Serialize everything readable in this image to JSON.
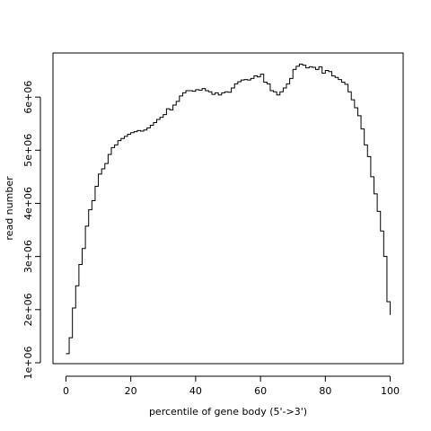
{
  "chart_data": {
    "type": "line",
    "drawstyle": "steps",
    "color": "#000000",
    "xlabel": "percentile of gene body (5'->3')",
    "ylabel": "read number",
    "x": [
      0,
      1,
      2,
      3,
      4,
      5,
      6,
      7,
      8,
      9,
      10,
      11,
      12,
      13,
      14,
      15,
      16,
      17,
      18,
      19,
      20,
      21,
      22,
      23,
      24,
      25,
      26,
      27,
      28,
      29,
      30,
      31,
      32,
      33,
      34,
      35,
      36,
      37,
      38,
      39,
      40,
      41,
      42,
      43,
      44,
      45,
      46,
      47,
      48,
      49,
      50,
      51,
      52,
      53,
      54,
      55,
      56,
      57,
      58,
      59,
      60,
      61,
      62,
      63,
      64,
      65,
      66,
      67,
      68,
      69,
      70,
      71,
      72,
      73,
      74,
      75,
      76,
      77,
      78,
      79,
      80,
      81,
      82,
      83,
      84,
      85,
      86,
      87,
      88,
      89,
      90,
      91,
      92,
      93,
      94,
      95,
      96,
      97,
      98,
      99,
      100
    ],
    "values": [
      1170000,
      1470000,
      2030000,
      2450000,
      2850000,
      3150000,
      3570000,
      3880000,
      4050000,
      4320000,
      4550000,
      4650000,
      4750000,
      4920000,
      5050000,
      5100000,
      5180000,
      5220000,
      5260000,
      5300000,
      5330000,
      5350000,
      5370000,
      5360000,
      5380000,
      5420000,
      5470000,
      5520000,
      5580000,
      5620000,
      5670000,
      5780000,
      5760000,
      5850000,
      5920000,
      6020000,
      6080000,
      6120000,
      6120000,
      6110000,
      6140000,
      6130000,
      6160000,
      6120000,
      6100000,
      6050000,
      6080000,
      6040000,
      6080000,
      6100000,
      6090000,
      6170000,
      6250000,
      6290000,
      6320000,
      6330000,
      6320000,
      6350000,
      6400000,
      6380000,
      6430000,
      6280000,
      6250000,
      6120000,
      6100000,
      6040000,
      6100000,
      6170000,
      6250000,
      6350000,
      6520000,
      6580000,
      6620000,
      6600000,
      6550000,
      6570000,
      6560000,
      6520000,
      6570000,
      6450000,
      6500000,
      6480000,
      6400000,
      6370000,
      6330000,
      6280000,
      6240000,
      6100000,
      5950000,
      5800000,
      5650000,
      5400000,
      5100000,
      4880000,
      4500000,
      4180000,
      3850000,
      3480000,
      3000000,
      2150000,
      1900000
    ],
    "xlim": [
      -4,
      104
    ],
    "xticks": [
      0,
      20,
      40,
      60,
      80,
      100
    ],
    "ylim": [
      983000,
      6830000
    ],
    "yticks": [
      {
        "value": 1000000,
        "label": "1e+06"
      },
      {
        "value": 2000000,
        "label": "2e+06"
      },
      {
        "value": 3000000,
        "label": "3e+06"
      },
      {
        "value": 4000000,
        "label": "4e+06"
      },
      {
        "value": 5000000,
        "label": "5e+06"
      },
      {
        "value": 6000000,
        "label": "6e+06"
      }
    ]
  }
}
